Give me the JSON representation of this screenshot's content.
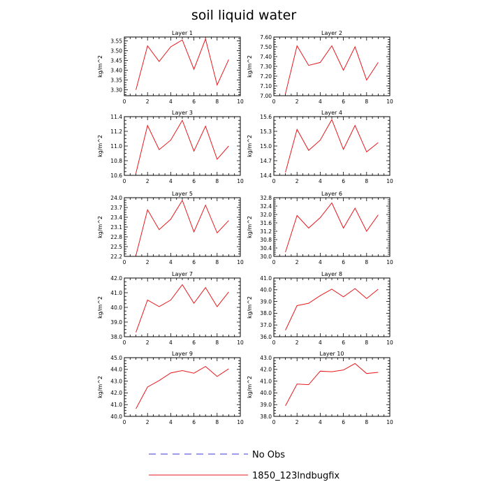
{
  "title": "soil liquid water",
  "colors": {
    "series": "#e8191e",
    "noobs": "#3a3ad6",
    "axis": "#000000"
  },
  "legend": {
    "items": [
      {
        "label": "No Obs",
        "style": "dashed",
        "color": "#3a3ad6"
      },
      {
        "label": "1850_123lndbugfix",
        "style": "solid",
        "color": "#e8191e"
      }
    ]
  },
  "chart_data": [
    {
      "type": "line",
      "title": "Layer 1",
      "ylabel": "kg/m^2",
      "xlim": [
        0,
        10
      ],
      "ylim": [
        3.27,
        3.57
      ],
      "xticks": [
        0,
        2,
        4,
        6,
        8,
        10
      ],
      "yticks": [
        3.3,
        3.35,
        3.4,
        3.45,
        3.5,
        3.55
      ],
      "ydecimals": 2,
      "series": [
        {
          "name": "1850_123lndbugfix",
          "x": [
            1,
            2,
            3,
            4,
            5,
            6,
            7,
            8,
            9
          ],
          "values": [
            3.3,
            3.525,
            3.445,
            3.52,
            3.555,
            3.405,
            3.56,
            3.325,
            3.455
          ]
        }
      ]
    },
    {
      "type": "line",
      "title": "Layer 2",
      "ylabel": "kg/m^2",
      "xlim": [
        0,
        10
      ],
      "ylim": [
        7.0,
        7.6
      ],
      "xticks": [
        0,
        2,
        4,
        6,
        8,
        10
      ],
      "yticks": [
        7.0,
        7.1,
        7.2,
        7.3,
        7.4,
        7.5,
        7.6
      ],
      "ydecimals": 2,
      "series": [
        {
          "name": "1850_123lndbugfix",
          "x": [
            1,
            2,
            3,
            4,
            5,
            6,
            7,
            8,
            9
          ],
          "values": [
            7.02,
            7.51,
            7.31,
            7.34,
            7.51,
            7.26,
            7.5,
            7.16,
            7.34
          ]
        }
      ]
    },
    {
      "type": "line",
      "title": "Layer 3",
      "ylabel": "kg/m^2",
      "xlim": [
        0,
        10
      ],
      "ylim": [
        10.6,
        11.4
      ],
      "xticks": [
        0,
        2,
        4,
        6,
        8,
        10
      ],
      "yticks": [
        10.6,
        10.8,
        11.0,
        11.2,
        11.4
      ],
      "ydecimals": 1,
      "series": [
        {
          "name": "1850_123lndbugfix",
          "x": [
            1,
            2,
            3,
            4,
            5,
            6,
            7,
            8,
            9
          ],
          "values": [
            10.63,
            11.28,
            10.95,
            11.08,
            11.35,
            10.93,
            11.27,
            10.82,
            11.0
          ]
        }
      ]
    },
    {
      "type": "line",
      "title": "Layer 4",
      "ylabel": "kg/m^2",
      "xlim": [
        0,
        10
      ],
      "ylim": [
        14.4,
        15.6
      ],
      "xticks": [
        0,
        2,
        4,
        6,
        8,
        10
      ],
      "yticks": [
        14.4,
        14.7,
        15.0,
        15.3,
        15.6
      ],
      "ydecimals": 1,
      "series": [
        {
          "name": "1850_123lndbugfix",
          "x": [
            1,
            2,
            3,
            4,
            5,
            6,
            7,
            8,
            9
          ],
          "values": [
            14.46,
            15.34,
            14.91,
            15.12,
            15.54,
            14.93,
            15.42,
            14.88,
            15.07
          ]
        }
      ]
    },
    {
      "type": "line",
      "title": "Layer 5",
      "ylabel": "kg/m^2",
      "xlim": [
        0,
        10
      ],
      "ylim": [
        22.2,
        24.0
      ],
      "xticks": [
        0,
        2,
        4,
        6,
        8,
        10
      ],
      "yticks": [
        22.2,
        22.5,
        22.8,
        23.1,
        23.4,
        23.7,
        24.0
      ],
      "ydecimals": 1,
      "series": [
        {
          "name": "1850_123lndbugfix",
          "x": [
            1,
            2,
            3,
            4,
            5,
            6,
            7,
            8,
            9
          ],
          "values": [
            22.23,
            23.63,
            23.02,
            23.34,
            23.92,
            22.95,
            23.77,
            22.92,
            23.3
          ]
        }
      ]
    },
    {
      "type": "line",
      "title": "Layer 6",
      "ylabel": "kg/m^2",
      "xlim": [
        0,
        10
      ],
      "ylim": [
        30.0,
        32.8
      ],
      "xticks": [
        0,
        2,
        4,
        6,
        8,
        10
      ],
      "yticks": [
        30.0,
        30.4,
        30.8,
        31.2,
        31.6,
        32.0,
        32.4,
        32.8
      ],
      "ydecimals": 1,
      "series": [
        {
          "name": "1850_123lndbugfix",
          "x": [
            1,
            2,
            3,
            4,
            5,
            6,
            7,
            8,
            9
          ],
          "values": [
            30.2,
            31.95,
            31.35,
            31.85,
            32.55,
            31.35,
            32.3,
            31.2,
            31.98
          ]
        }
      ]
    },
    {
      "type": "line",
      "title": "Layer 7",
      "ylabel": "kg/m^2",
      "xlim": [
        0,
        10
      ],
      "ylim": [
        38.0,
        42.0
      ],
      "xticks": [
        0,
        2,
        4,
        6,
        8,
        10
      ],
      "yticks": [
        38.0,
        39.0,
        40.0,
        41.0,
        42.0
      ],
      "ydecimals": 1,
      "series": [
        {
          "name": "1850_123lndbugfix",
          "x": [
            1,
            2,
            3,
            4,
            5,
            6,
            7,
            8,
            9
          ],
          "values": [
            38.3,
            40.5,
            40.05,
            40.5,
            41.55,
            40.28,
            41.35,
            40.05,
            41.05
          ]
        }
      ]
    },
    {
      "type": "line",
      "title": "Layer 8",
      "ylabel": "kg/m^2",
      "xlim": [
        0,
        10
      ],
      "ylim": [
        36.0,
        41.0
      ],
      "xticks": [
        0,
        2,
        4,
        6,
        8,
        10
      ],
      "yticks": [
        36.0,
        37.0,
        38.0,
        39.0,
        40.0,
        41.0
      ],
      "ydecimals": 1,
      "series": [
        {
          "name": "1850_123lndbugfix",
          "x": [
            1,
            2,
            3,
            4,
            5,
            6,
            7,
            8,
            9
          ],
          "values": [
            36.55,
            38.65,
            38.85,
            39.5,
            40.05,
            39.4,
            40.1,
            39.25,
            40.05
          ]
        }
      ]
    },
    {
      "type": "line",
      "title": "Layer 9",
      "ylabel": "kg/m^2",
      "xlim": [
        0,
        10
      ],
      "ylim": [
        40.0,
        45.0
      ],
      "xticks": [
        0,
        2,
        4,
        6,
        8,
        10
      ],
      "yticks": [
        40.0,
        41.0,
        42.0,
        43.0,
        44.0,
        45.0
      ],
      "ydecimals": 1,
      "series": [
        {
          "name": "1850_123lndbugfix",
          "x": [
            1,
            2,
            3,
            4,
            5,
            6,
            7,
            8,
            9
          ],
          "values": [
            40.65,
            42.5,
            43.05,
            43.7,
            43.9,
            43.68,
            44.25,
            43.4,
            44.05
          ]
        }
      ]
    },
    {
      "type": "line",
      "title": "Layer 10",
      "ylabel": "kg/m^2",
      "xlim": [
        0,
        10
      ],
      "ylim": [
        38.0,
        43.0
      ],
      "xticks": [
        0,
        2,
        4,
        6,
        8,
        10
      ],
      "yticks": [
        38.0,
        39.0,
        40.0,
        41.0,
        42.0,
        43.0
      ],
      "ydecimals": 1,
      "series": [
        {
          "name": "1850_123lndbugfix",
          "x": [
            1,
            2,
            3,
            4,
            5,
            6,
            7,
            8,
            9
          ],
          "values": [
            38.9,
            40.75,
            40.7,
            41.85,
            41.8,
            41.95,
            42.5,
            41.65,
            41.75
          ]
        }
      ]
    }
  ]
}
